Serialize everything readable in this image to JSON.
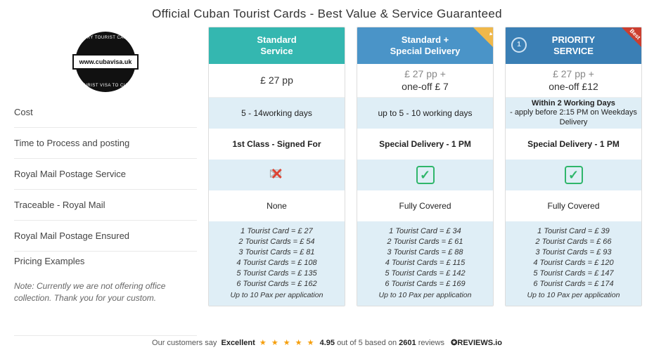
{
  "title": "Official Cuban Tourist Cards - Best Value & Service Guaranteed",
  "logo": {
    "url_text": "www.cubavisa.uk",
    "ring_top": "ENTRY TOURIST CARDS",
    "ring_bottom": "TOURIST VISA TO CUBA"
  },
  "row_labels": {
    "cost": "Cost",
    "processing": "Time to Process and posting",
    "postage_service": "Royal Mail Postage Service",
    "traceable": "Traceable - Royal Mail",
    "ensured": "Royal Mail Postage Ensured",
    "pricing": "Pricing Examples"
  },
  "note": "Note: Currently we are not offering office collection. Thank you for your custom.",
  "columns": {
    "standard": {
      "head": "Standard\nService",
      "head_color": "#34b7b0",
      "cost_html": "£ 27 pp",
      "processing": "5 - 14working days",
      "postage_service": "1st Class - Signed For",
      "traceable": "cross",
      "ensured": "None",
      "pricing": [
        "1 Tourist Card = £ 27",
        "2 Tourist Cards = £ 54",
        "3 Tourist Cards = £ 81",
        "4 Tourist Cards = £ 108",
        "5 Tourist Cards = £ 135",
        "6 Tourist Cards = £ 162"
      ],
      "pricing_footer": "Up to 10 Pax per application"
    },
    "special": {
      "head": "Standard + Special Delivery",
      "head_color": "#4a94c8",
      "ribbon": "heart",
      "cost_grey": "£ 27  pp",
      "cost_plus": "+",
      "cost_bold": "one-off £ 7",
      "processing": "up to 5 - 10 working days",
      "postage_service": "Special Delivery - 1 PM",
      "traceable": "check",
      "ensured": "Fully Covered",
      "pricing": [
        "1 Tourist Card =  £ 34",
        "2 Tourist Cards =  £ 61",
        "3 Tourist Cards =  £ 88",
        "4 Tourist Cards =  £ 115",
        "5 Tourist Cards =  £ 142",
        "6 Tourist Cards =  £ 169"
      ],
      "pricing_footer": "Up to 10 Pax per application"
    },
    "priority": {
      "head": "PRIORITY SERVICE",
      "head_color": "#3a7fb5",
      "ribbon": "Best",
      "cost_grey": "£ 27 pp",
      "cost_plus": "+",
      "cost_bold": "one-off £12",
      "processing_bold": "Within 2 Working Days",
      "processing_sub": "- apply before 2:15 PM on Weekdays Delivery",
      "postage_service": "Special Delivery - 1 PM",
      "traceable": "check",
      "ensured": "Fully Covered",
      "pricing": [
        "1 Tourist Card =  £ 39",
        "2 Tourist Cards =  £ 66",
        "3 Tourist Cards =  £ 93",
        "4 Tourist Cards =  £ 120",
        "5 Tourist Cards =  £ 147",
        "6 Tourist Cards =  £ 174"
      ],
      "pricing_footer": "Up to 10 Pax per application"
    }
  },
  "reviews": {
    "prefix": "Our customers say",
    "word": "Excellent",
    "stars": "★ ★ ★ ★ ★",
    "score": "4.95",
    "mid": "out of 5 based on",
    "count": "2601",
    "suffix": "reviews",
    "logo": "✪REVIEWS.io"
  }
}
